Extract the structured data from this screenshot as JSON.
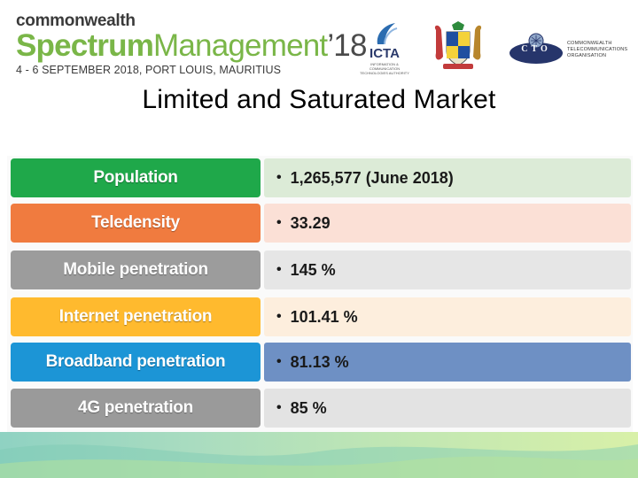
{
  "header": {
    "brand_top": "commonwealth",
    "brand_main_1": "Spectrum",
    "brand_main_2": "Management",
    "brand_main_3": "’18",
    "event_date": "4 - 6 SEPTEMBER 2018, PORT LOUIS, MAURITIUS",
    "icta_label": "ICTA",
    "icta_sub": "INFORMATION & COMMUNICATION TECHNOLOGIES AUTHORITY",
    "cto_label": "CTO",
    "cto_org": "COMMONWEALTH TELECOMMUNICATIONS ORGANISATION"
  },
  "slide": {
    "title": "Limited and Saturated Market"
  },
  "rows": [
    {
      "label": "Population",
      "value": "1,265,577 (June 2018)",
      "label_color": "#1fa84a",
      "value_color": "#dcebd7"
    },
    {
      "label": "Teledensity",
      "value": "33.29",
      "label_color": "#f07b3f",
      "value_color": "#fbe0d6"
    },
    {
      "label": "Mobile penetration",
      "value": "145 %",
      "label_color": "#9c9c9c",
      "value_color": "#e6e6e6"
    },
    {
      "label": "Internet penetration",
      "value": "101.41 %",
      "label_color": "#ffba2e",
      "value_color": "#fdeedd"
    },
    {
      "label": "Broadband penetration",
      "value": "81.13 %",
      "label_color": "#1c95d6",
      "value_color": "#6e90c4"
    },
    {
      "label": "4G penetration",
      "value": "85 %",
      "label_color": "#9a9a9a",
      "value_color": "#e3e3e3"
    }
  ]
}
